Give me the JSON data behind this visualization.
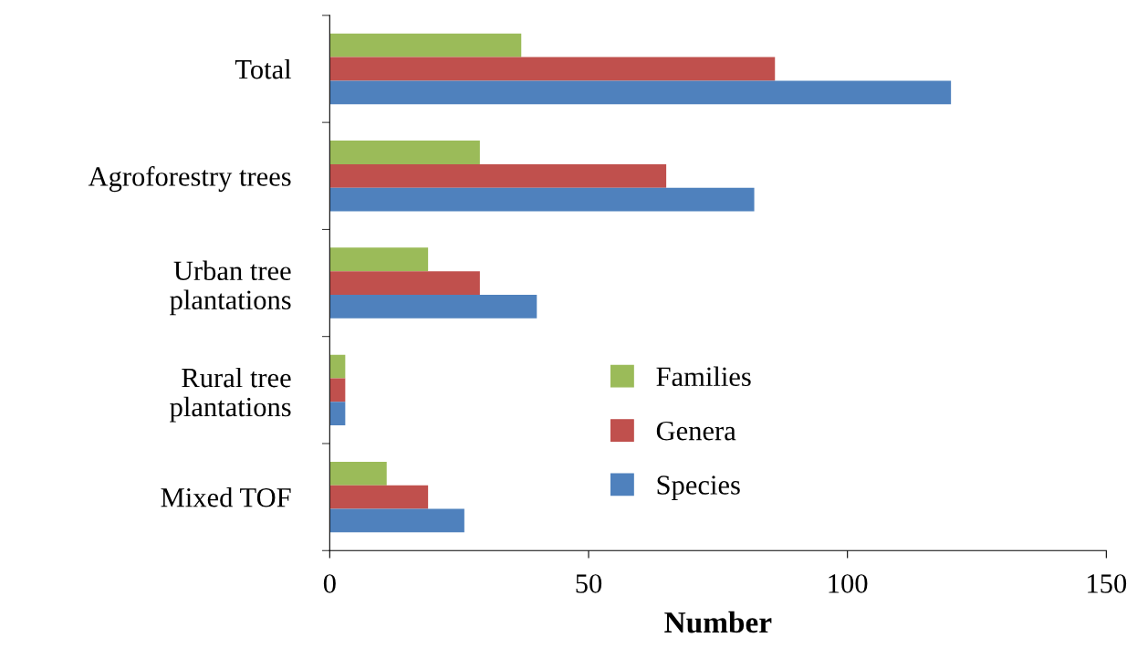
{
  "chart_data": {
    "type": "bar",
    "orientation": "horizontal",
    "categories": [
      "Total",
      "Agroforestry trees",
      "Urban tree\nplantations",
      "Rural tree\nplantations",
      "Mixed TOF"
    ],
    "series": [
      {
        "name": "Families",
        "color": "#9bbb59",
        "values": [
          37,
          29,
          19,
          3,
          11
        ]
      },
      {
        "name": "Genera",
        "color": "#c0504d",
        "values": [
          86,
          65,
          29,
          3,
          19
        ]
      },
      {
        "name": "Species",
        "color": "#4f81bd",
        "values": [
          120,
          82,
          40,
          3,
          26
        ]
      }
    ],
    "xlabel": "Number",
    "xlim": [
      0,
      150
    ],
    "xticks": [
      0,
      50,
      100,
      150
    ],
    "grid": false,
    "legend": "right"
  }
}
